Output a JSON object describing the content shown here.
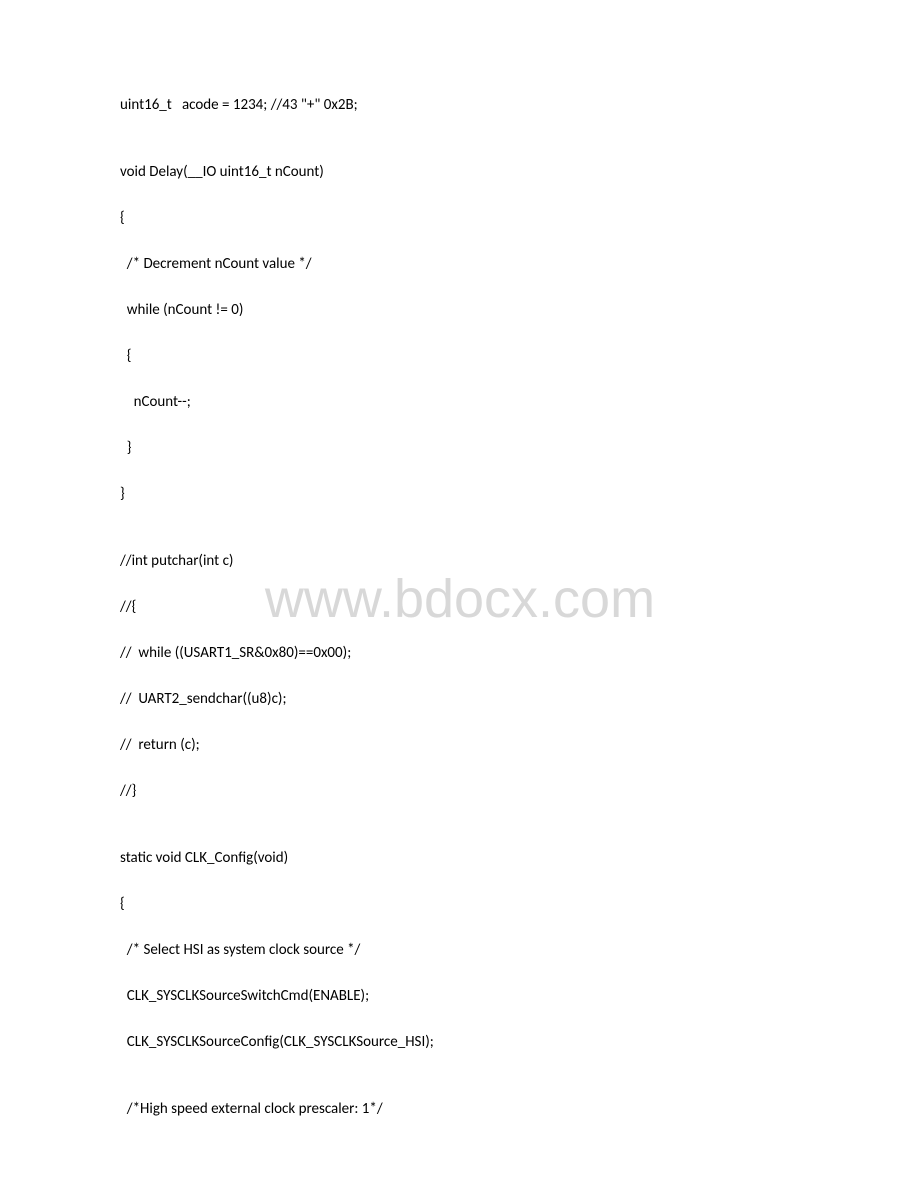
{
  "watermark": "www.bdocx.com",
  "lines": [
    {
      "type": "code",
      "text": "uint16_t   acode = 1234; //43 \"+\" 0x2B;"
    },
    {
      "type": "double-blank"
    },
    {
      "type": "code",
      "text": "void Delay(__IO uint16_t nCount)"
    },
    {
      "type": "code",
      "text": "{"
    },
    {
      "type": "code",
      "text": "  /* Decrement nCount value */"
    },
    {
      "type": "code",
      "text": "  while (nCount != 0)"
    },
    {
      "type": "code",
      "text": "  {"
    },
    {
      "type": "code",
      "text": "    nCount--;"
    },
    {
      "type": "code",
      "text": "  }"
    },
    {
      "type": "code",
      "text": "}"
    },
    {
      "type": "double-blank"
    },
    {
      "type": "code",
      "text": "//int putchar(int c)"
    },
    {
      "type": "code",
      "text": "//{"
    },
    {
      "type": "code",
      "text": "//  while ((USART1_SR&0x80)==0x00);"
    },
    {
      "type": "code",
      "text": "//  UART2_sendchar((u8)c);"
    },
    {
      "type": "code",
      "text": "//  return (c);"
    },
    {
      "type": "code",
      "text": "//}"
    },
    {
      "type": "double-blank"
    },
    {
      "type": "code",
      "text": "static void CLK_Config(void)"
    },
    {
      "type": "code",
      "text": "{"
    },
    {
      "type": "code",
      "text": "  /* Select HSI as system clock source */"
    },
    {
      "type": "code",
      "text": "  CLK_SYSCLKSourceSwitchCmd(ENABLE);"
    },
    {
      "type": "code",
      "text": "  CLK_SYSCLKSourceConfig(CLK_SYSCLKSource_HSI);"
    },
    {
      "type": "double-blank"
    },
    {
      "type": "code",
      "text": "  /*High speed external clock prescaler: 1*/"
    }
  ]
}
